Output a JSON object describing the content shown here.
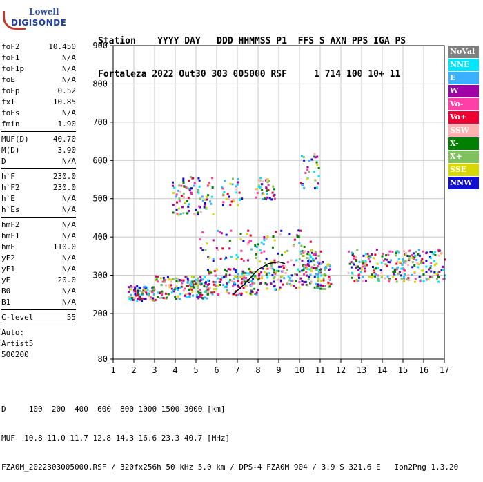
{
  "logo": {
    "line1": "Lowell",
    "line2": "DIGISONDE"
  },
  "header": {
    "labels": "Station    YYYY DAY   DDD HHMMSS P1  FFS S AXN PPS IGA PS",
    "values": "Fortaleza 2022 Out30 303 005000 RSF     1 714 100 10+ 11"
  },
  "params": {
    "group1": [
      {
        "name": "foF2",
        "value": "10.450"
      },
      {
        "name": "foF1",
        "value": "N/A"
      },
      {
        "name": "foF1p",
        "value": "N/A"
      },
      {
        "name": "foE",
        "value": "N/A"
      },
      {
        "name": "foEp",
        "value": "0.52"
      },
      {
        "name": "fxI",
        "value": "10.85"
      },
      {
        "name": "foEs",
        "value": "N/A"
      },
      {
        "name": "fmin",
        "value": "1.90"
      }
    ],
    "group2": [
      {
        "name": "MUF(D)",
        "value": "40.70"
      },
      {
        "name": "M(D)",
        "value": "3.90"
      },
      {
        "name": "D",
        "value": "N/A"
      }
    ],
    "group3": [
      {
        "name": "h`F",
        "value": "230.0"
      },
      {
        "name": "h`F2",
        "value": "230.0"
      },
      {
        "name": "h`E",
        "value": "N/A"
      },
      {
        "name": "h`Es",
        "value": "N/A"
      }
    ],
    "group4": [
      {
        "name": "hmF2",
        "value": "N/A"
      },
      {
        "name": "hmF1",
        "value": "N/A"
      },
      {
        "name": "hmE",
        "value": "110.0"
      },
      {
        "name": "yF2",
        "value": "N/A"
      },
      {
        "name": "yF1",
        "value": "N/A"
      },
      {
        "name": "yE",
        "value": "20.0"
      },
      {
        "name": "B0",
        "value": "N/A"
      },
      {
        "name": "B1",
        "value": "N/A"
      }
    ],
    "group5": [
      {
        "name": "C-level",
        "value": "55"
      }
    ]
  },
  "auto": {
    "line1": "Auto:",
    "line2": "Artist5",
    "line3": "500200"
  },
  "legend": [
    {
      "label": "NoVal",
      "color": "#7f7f7f"
    },
    {
      "label": "NNE",
      "color": "#00e5ff"
    },
    {
      "label": "E",
      "color": "#3ab0ff"
    },
    {
      "label": "W",
      "color": "#a000a8"
    },
    {
      "label": "Vo-",
      "color": "#ff3fa8"
    },
    {
      "label": "Vo+",
      "color": "#ee0033"
    },
    {
      "label": "SSW",
      "color": "#ffb0b0"
    },
    {
      "label": "X-",
      "color": "#007f00"
    },
    {
      "label": "X+",
      "color": "#80c060"
    },
    {
      "label": "SSE",
      "color": "#d8d800"
    },
    {
      "label": "NNW",
      "color": "#1010d0"
    }
  ],
  "axes": {
    "x_ticks": [
      "1",
      "2",
      "3",
      "4",
      "5",
      "6",
      "7",
      "8",
      "9",
      "10",
      "11",
      "12",
      "13",
      "14",
      "15",
      "16",
      "17"
    ],
    "y_ticks": [
      "80",
      "200",
      "300",
      "400",
      "500",
      "600",
      "700",
      "800",
      "900"
    ]
  },
  "footer": {
    "line1": "D     100  200  400  600  800 1000 1500 3000 [km]",
    "line2": "MUF  10.8 11.0 11.7 12.8 14.3 16.6 23.3 40.7 [MHz]",
    "line3": "FZA0M_2022303005000.RSF / 320fx256h 50 kHz 5.0 km / DPS-4 FZA0M 904 / 3.9 S 321.6 E   Ion2Png 1.3.20"
  },
  "chart_data": {
    "type": "scatter",
    "xlim": [
      1,
      17
    ],
    "ylim": [
      80,
      900
    ],
    "trace_line": {
      "x": [
        6.8,
        7.4,
        8.0,
        8.5,
        9.0,
        9.3
      ],
      "y": [
        250,
        280,
        315,
        330,
        335,
        330
      ]
    }
  }
}
